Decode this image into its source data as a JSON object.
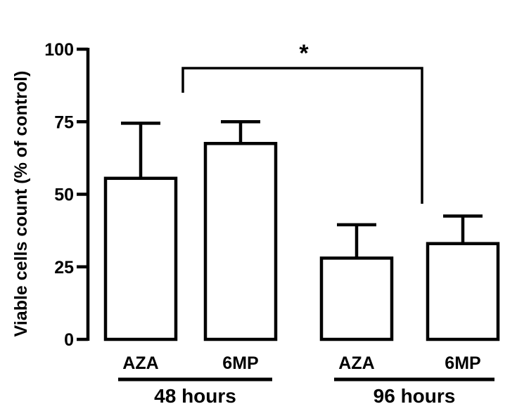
{
  "chart_data": {
    "type": "bar",
    "title": "",
    "xlabel": "",
    "ylabel": "Viable cells count (% of control)",
    "ylim": [
      0,
      100
    ],
    "yticks": [
      0,
      25,
      50,
      75,
      100
    ],
    "categories": [
      "AZA",
      "6MP",
      "AZA",
      "6MP"
    ],
    "values": [
      55.5,
      67.5,
      28,
      33
    ],
    "errors": [
      19,
      7.5,
      11.5,
      9.5
    ],
    "groups": [
      {
        "label": "48 hours",
        "members": [
          0,
          1
        ]
      },
      {
        "label": "96 hours",
        "members": [
          2,
          3
        ]
      }
    ],
    "annotations": [
      {
        "type": "significance-bracket",
        "text": "*",
        "from_group": 0,
        "to_group": 1
      }
    ],
    "grid": false,
    "legend": "none",
    "bar_fill": "#ffffff",
    "stroke_color": "#000000"
  }
}
